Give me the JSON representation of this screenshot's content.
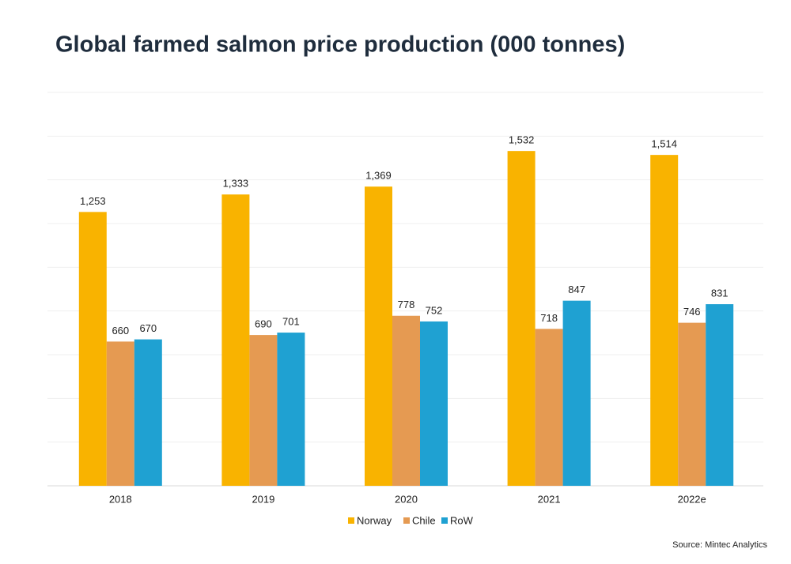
{
  "chart_data": {
    "type": "bar",
    "title": "Global farmed salmon price production (000 tonnes)",
    "categories": [
      "2018",
      "2019",
      "2020",
      "2021",
      "2022e"
    ],
    "series": [
      {
        "name": "Norway",
        "color": "#f9b300",
        "values": [
          1253,
          1333,
          1369,
          1532,
          1514
        ],
        "value_labels": [
          "1,253",
          "1,333",
          "1,369",
          "1,532",
          "1,514"
        ]
      },
      {
        "name": "Chile",
        "color": "#e59a52",
        "values": [
          660,
          690,
          778,
          718,
          746
        ]
      },
      {
        "name": "RoW",
        "color": "#1fa1d2",
        "values": [
          670,
          701,
          752,
          847,
          831
        ]
      }
    ],
    "ylim": [
      0,
      1800
    ],
    "yticks": [
      0,
      200,
      400,
      600,
      800,
      1000,
      1200,
      1400,
      1600,
      1800
    ],
    "ytick_labels": false,
    "grid": true,
    "legend": "bottom",
    "source": "Source: Mintec Analytics"
  }
}
